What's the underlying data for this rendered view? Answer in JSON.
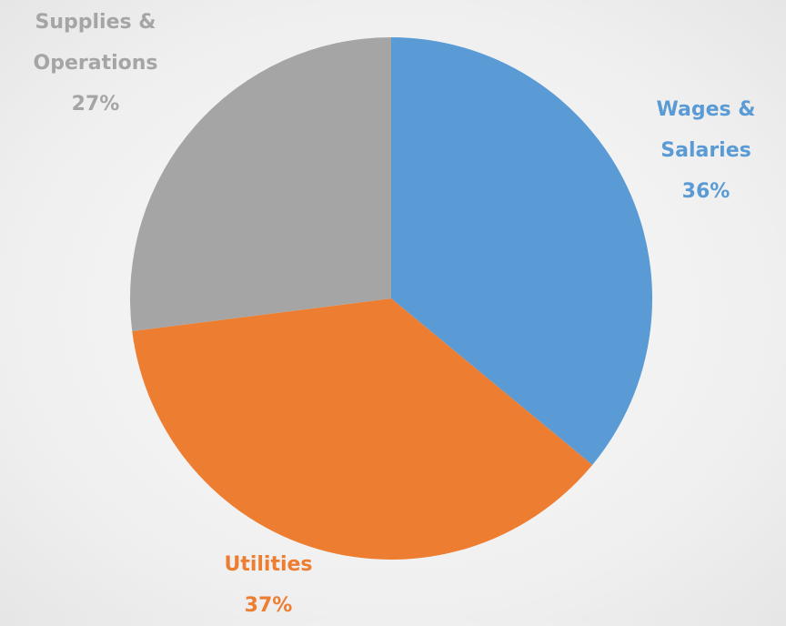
{
  "chart_data": {
    "type": "pie",
    "categories": [
      "Wages & Salaries",
      "Utilities",
      "Supplies & Operations"
    ],
    "values": [
      36,
      37,
      27
    ],
    "value_labels": [
      "36%",
      "37%",
      "27%"
    ],
    "colors": [
      "#5b9bd5",
      "#ed7d31",
      "#a5a5a5"
    ]
  }
}
